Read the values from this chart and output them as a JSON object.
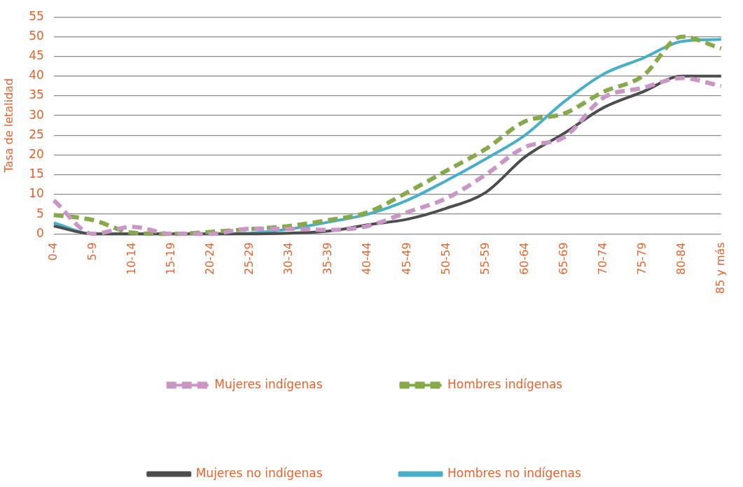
{
  "chart_data": {
    "type": "line",
    "ylabel": "Tasa de letalidad",
    "categories": [
      "0-4",
      "5-9",
      "10-14",
      "15-19",
      "20-24",
      "25-29",
      "30-34",
      "35-39",
      "40-44",
      "45-49",
      "50-54",
      "55-59",
      "60-64",
      "65-69",
      "70-74",
      "75-79",
      "80-84",
      "85 y más"
    ],
    "series": [
      {
        "name": "Mujeres indígenas",
        "color": "#c996c6",
        "line_style": "dashed",
        "values": [
          8.5,
          0,
          1.8,
          0,
          0,
          1.3,
          1.3,
          1,
          2,
          5.5,
          9,
          15,
          22,
          24.5,
          34.5,
          37,
          39.5,
          37.5
        ]
      },
      {
        "name": "Hombres indígenas",
        "color": "#86a94a",
        "line_style": "dashed",
        "values": [
          4.8,
          3.5,
          0.3,
          0,
          0.5,
          1.2,
          2,
          3.5,
          5.5,
          10.5,
          16,
          21.5,
          28.5,
          30.5,
          36,
          40,
          50,
          47
        ]
      },
      {
        "name": "Mujeres no indígenas",
        "color": "#4d4d4d",
        "line_style": "solid",
        "values": [
          2,
          0,
          0,
          0,
          0,
          0,
          0.2,
          0.7,
          2.3,
          3.7,
          6.5,
          10.5,
          19.5,
          25.5,
          32,
          36,
          40,
          40
        ]
      },
      {
        "name": "Hombres no indígenas",
        "color": "#48afc9",
        "line_style": "solid",
        "values": [
          2.8,
          0,
          0,
          0,
          0,
          0.2,
          1.2,
          3,
          5,
          8.5,
          13.5,
          19,
          25,
          33.5,
          40.5,
          44.5,
          48.8,
          49.3
        ]
      }
    ],
    "ylim": [
      0,
      55
    ],
    "yticks": [
      0,
      5,
      10,
      15,
      20,
      25,
      30,
      35,
      40,
      45,
      50,
      55
    ],
    "grid": "y",
    "legend": "bottom",
    "marker": "none"
  }
}
